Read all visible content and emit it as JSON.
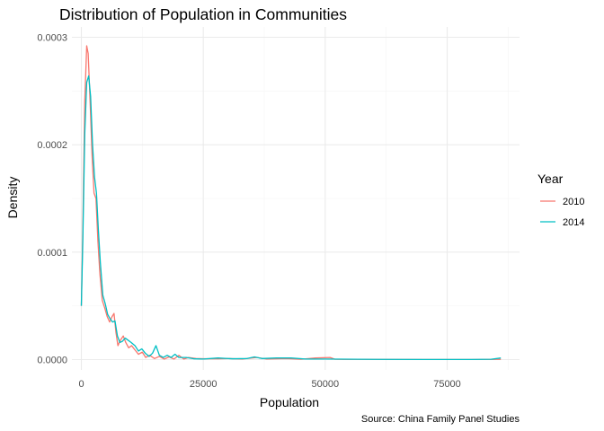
{
  "chart_data": {
    "type": "line",
    "title": "Distribution of Population in Communities",
    "xlabel": "Population",
    "ylabel": "Density",
    "caption": "Source: China Family Panel Studies",
    "xlim": [
      0,
      86000
    ],
    "ylim": [
      0,
      0.0003
    ],
    "x_ticks": [
      0,
      25000,
      50000,
      75000
    ],
    "x_tick_labels": [
      "0",
      "25000",
      "50000",
      "75000"
    ],
    "y_ticks": [
      0.0,
      0.0001,
      0.0002,
      0.0003
    ],
    "y_tick_labels": [
      "0.0000",
      "0.0001",
      "0.0002",
      "0.0003"
    ],
    "grid": true,
    "legend": {
      "title": "Year",
      "placement": "right"
    },
    "series": [
      {
        "name": "2010",
        "color": "#F8766D",
        "points": [
          [
            0,
            5e-05
          ],
          [
            300,
            0.00012
          ],
          [
            700,
            0.00024
          ],
          [
            1100,
            0.000292
          ],
          [
            1400,
            0.000285
          ],
          [
            1800,
            0.00024
          ],
          [
            2200,
            0.00019
          ],
          [
            2600,
            0.000155
          ],
          [
            3000,
            0.00015
          ],
          [
            3400,
            0.00011
          ],
          [
            3800,
            8e-05
          ],
          [
            4300,
            5.5e-05
          ],
          [
            4800,
            4.8e-05
          ],
          [
            5300,
            4e-05
          ],
          [
            5800,
            3.5e-05
          ],
          [
            6300,
            4e-05
          ],
          [
            6700,
            4.3e-05
          ],
          [
            7100,
            2.5e-05
          ],
          [
            7500,
            1.3e-05
          ],
          [
            8000,
            1.8e-05
          ],
          [
            8600,
            2.2e-05
          ],
          [
            9100,
            1.6e-05
          ],
          [
            9700,
            1.1e-05
          ],
          [
            10300,
            1.3e-05
          ],
          [
            11000,
            9e-06
          ],
          [
            11700,
            5e-06
          ],
          [
            12500,
            7e-06
          ],
          [
            13200,
            2e-06
          ],
          [
            14000,
            4e-06
          ],
          [
            15000,
            1e-06
          ],
          [
            16000,
            3e-06
          ],
          [
            17000,
            5e-07
          ],
          [
            18000,
            2.5e-06
          ],
          [
            19000,
            5e-07
          ],
          [
            20000,
            4e-06
          ],
          [
            21000,
            5e-07
          ],
          [
            22000,
            2e-06
          ],
          [
            23500,
            1e-06
          ],
          [
            25000,
            8e-07
          ],
          [
            28000,
            8e-07
          ],
          [
            30000,
            1e-06
          ],
          [
            33000,
            5e-07
          ],
          [
            36000,
            2e-06
          ],
          [
            38000,
            5e-07
          ],
          [
            42000,
            1e-06
          ],
          [
            45000,
            3e-07
          ],
          [
            48000,
            1.5e-06
          ],
          [
            51000,
            2e-06
          ],
          [
            52000,
            3e-07
          ],
          [
            60000,
            2e-07
          ],
          [
            70000,
            1e-07
          ],
          [
            80000,
            1e-07
          ],
          [
            86000,
            2e-07
          ]
        ]
      },
      {
        "name": "2014",
        "color": "#00BFC4",
        "points": [
          [
            0,
            5e-05
          ],
          [
            300,
            0.00011
          ],
          [
            700,
            0.00021
          ],
          [
            1100,
            0.000258
          ],
          [
            1500,
            0.000264
          ],
          [
            1900,
            0.000245
          ],
          [
            2300,
            0.0002
          ],
          [
            2700,
            0.00017
          ],
          [
            3100,
            0.000155
          ],
          [
            3500,
            0.00012
          ],
          [
            3900,
            9e-05
          ],
          [
            4400,
            6e-05
          ],
          [
            4900,
            5.2e-05
          ],
          [
            5400,
            4.2e-05
          ],
          [
            5900,
            3.8e-05
          ],
          [
            6400,
            3.5e-05
          ],
          [
            6900,
            3.6e-05
          ],
          [
            7400,
            2.2e-05
          ],
          [
            7900,
            1.6e-05
          ],
          [
            8400,
            1.7e-05
          ],
          [
            9000,
            2e-05
          ],
          [
            9600,
            1.8e-05
          ],
          [
            10200,
            1.6e-05
          ],
          [
            11000,
            1.3e-05
          ],
          [
            11700,
            8e-06
          ],
          [
            12400,
            1e-05
          ],
          [
            13100,
            6e-06
          ],
          [
            13900,
            3e-06
          ],
          [
            14600,
            6e-06
          ],
          [
            15300,
            1.3e-05
          ],
          [
            16000,
            4e-06
          ],
          [
            16800,
            2e-06
          ],
          [
            17600,
            4e-06
          ],
          [
            18400,
            2e-06
          ],
          [
            19200,
            5e-06
          ],
          [
            20000,
            2e-06
          ],
          [
            21500,
            2e-06
          ],
          [
            23000,
            8e-07
          ],
          [
            25000,
            5e-07
          ],
          [
            28000,
            1.5e-06
          ],
          [
            31000,
            8e-07
          ],
          [
            34000,
            1e-06
          ],
          [
            35500,
            2.5e-06
          ],
          [
            37000,
            1e-06
          ],
          [
            40000,
            1.5e-06
          ],
          [
            43000,
            1.5e-06
          ],
          [
            46000,
            5e-07
          ],
          [
            50000,
            5e-07
          ],
          [
            60000,
            2e-07
          ],
          [
            70000,
            1e-07
          ],
          [
            80000,
            1e-07
          ],
          [
            84000,
            3e-07
          ],
          [
            86000,
            1.5e-06
          ]
        ]
      }
    ]
  }
}
